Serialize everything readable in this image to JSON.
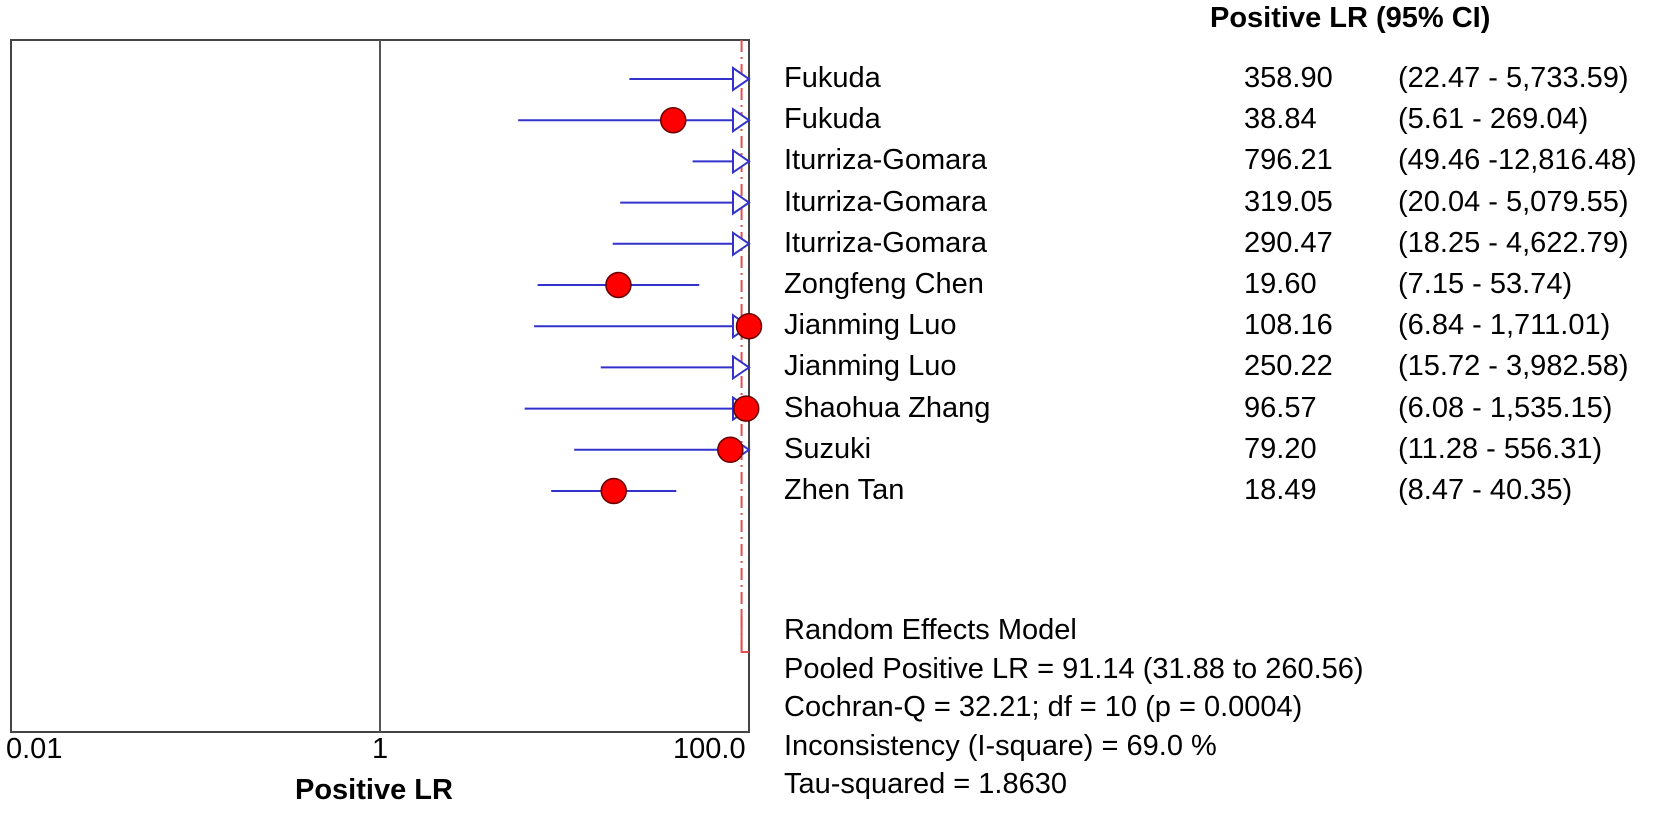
{
  "chart_data": {
    "type": "forest",
    "column_title": "Positive LR (95% CI)",
    "xlabel": "Positive LR",
    "x_scale": "log",
    "x_ticks": [
      "0.01",
      "1",
      "100.0"
    ],
    "xlim": [
      0.01,
      100
    ],
    "reference_line": 1,
    "pooled_line": 91.14,
    "marker_color": "#ff0000",
    "ci_color": "#3333cc",
    "pooled_color": "#e05050",
    "studies": [
      {
        "name": "Fukuda",
        "lr": 358.9,
        "lo": 22.47,
        "hi": 5733.59,
        "lr_text": "358.90",
        "ci_text": "(22.47 - 5,733.59)"
      },
      {
        "name": "Fukuda",
        "lr": 38.84,
        "lo": 5.61,
        "hi": 269.04,
        "lr_text": "38.84",
        "ci_text": "(5.61 - 269.04)"
      },
      {
        "name": "Iturriza-Gomara",
        "lr": 796.21,
        "lo": 49.46,
        "hi": 12816.48,
        "lr_text": "796.21",
        "ci_text": "(49.46 -12,816.48)"
      },
      {
        "name": "Iturriza-Gomara",
        "lr": 319.05,
        "lo": 20.04,
        "hi": 5079.55,
        "lr_text": "319.05",
        "ci_text": "(20.04 - 5,079.55)"
      },
      {
        "name": "Iturriza-Gomara",
        "lr": 290.47,
        "lo": 18.25,
        "hi": 4622.79,
        "lr_text": "290.47",
        "ci_text": "(18.25 - 4,622.79)"
      },
      {
        "name": "Zongfeng Chen",
        "lr": 19.6,
        "lo": 7.15,
        "hi": 53.74,
        "lr_text": "19.60",
        "ci_text": "(7.15 - 53.74)"
      },
      {
        "name": "Jianming Luo",
        "lr": 108.16,
        "lo": 6.84,
        "hi": 1711.01,
        "lr_text": "108.16",
        "ci_text": "(6.84 - 1,711.01)"
      },
      {
        "name": "Jianming Luo",
        "lr": 250.22,
        "lo": 15.72,
        "hi": 3982.58,
        "lr_text": "250.22",
        "ci_text": "(15.72 - 3,982.58)"
      },
      {
        "name": "Shaohua Zhang",
        "lr": 96.57,
        "lo": 6.08,
        "hi": 1535.15,
        "lr_text": "96.57",
        "ci_text": "(6.08 - 1,535.15)"
      },
      {
        "name": "Suzuki",
        "lr": 79.2,
        "lo": 11.28,
        "hi": 556.31,
        "lr_text": "79.20",
        "ci_text": "(11.28 - 556.31)"
      },
      {
        "name": "Zhen Tan",
        "lr": 18.49,
        "lo": 8.47,
        "hi": 40.35,
        "lr_text": "18.49",
        "ci_text": "(8.47 - 40.35)"
      }
    ],
    "summary": {
      "model": "Random Effects Model",
      "pooled": "Pooled Positive LR = 91.14 (31.88 to 260.56)",
      "cochran": "Cochran-Q = 32.21; df =  10 (p = 0.0004)",
      "inconsistency": "Inconsistency (I-square) = 69.0 %",
      "tau": "Tau-squared = 1.8630"
    }
  }
}
